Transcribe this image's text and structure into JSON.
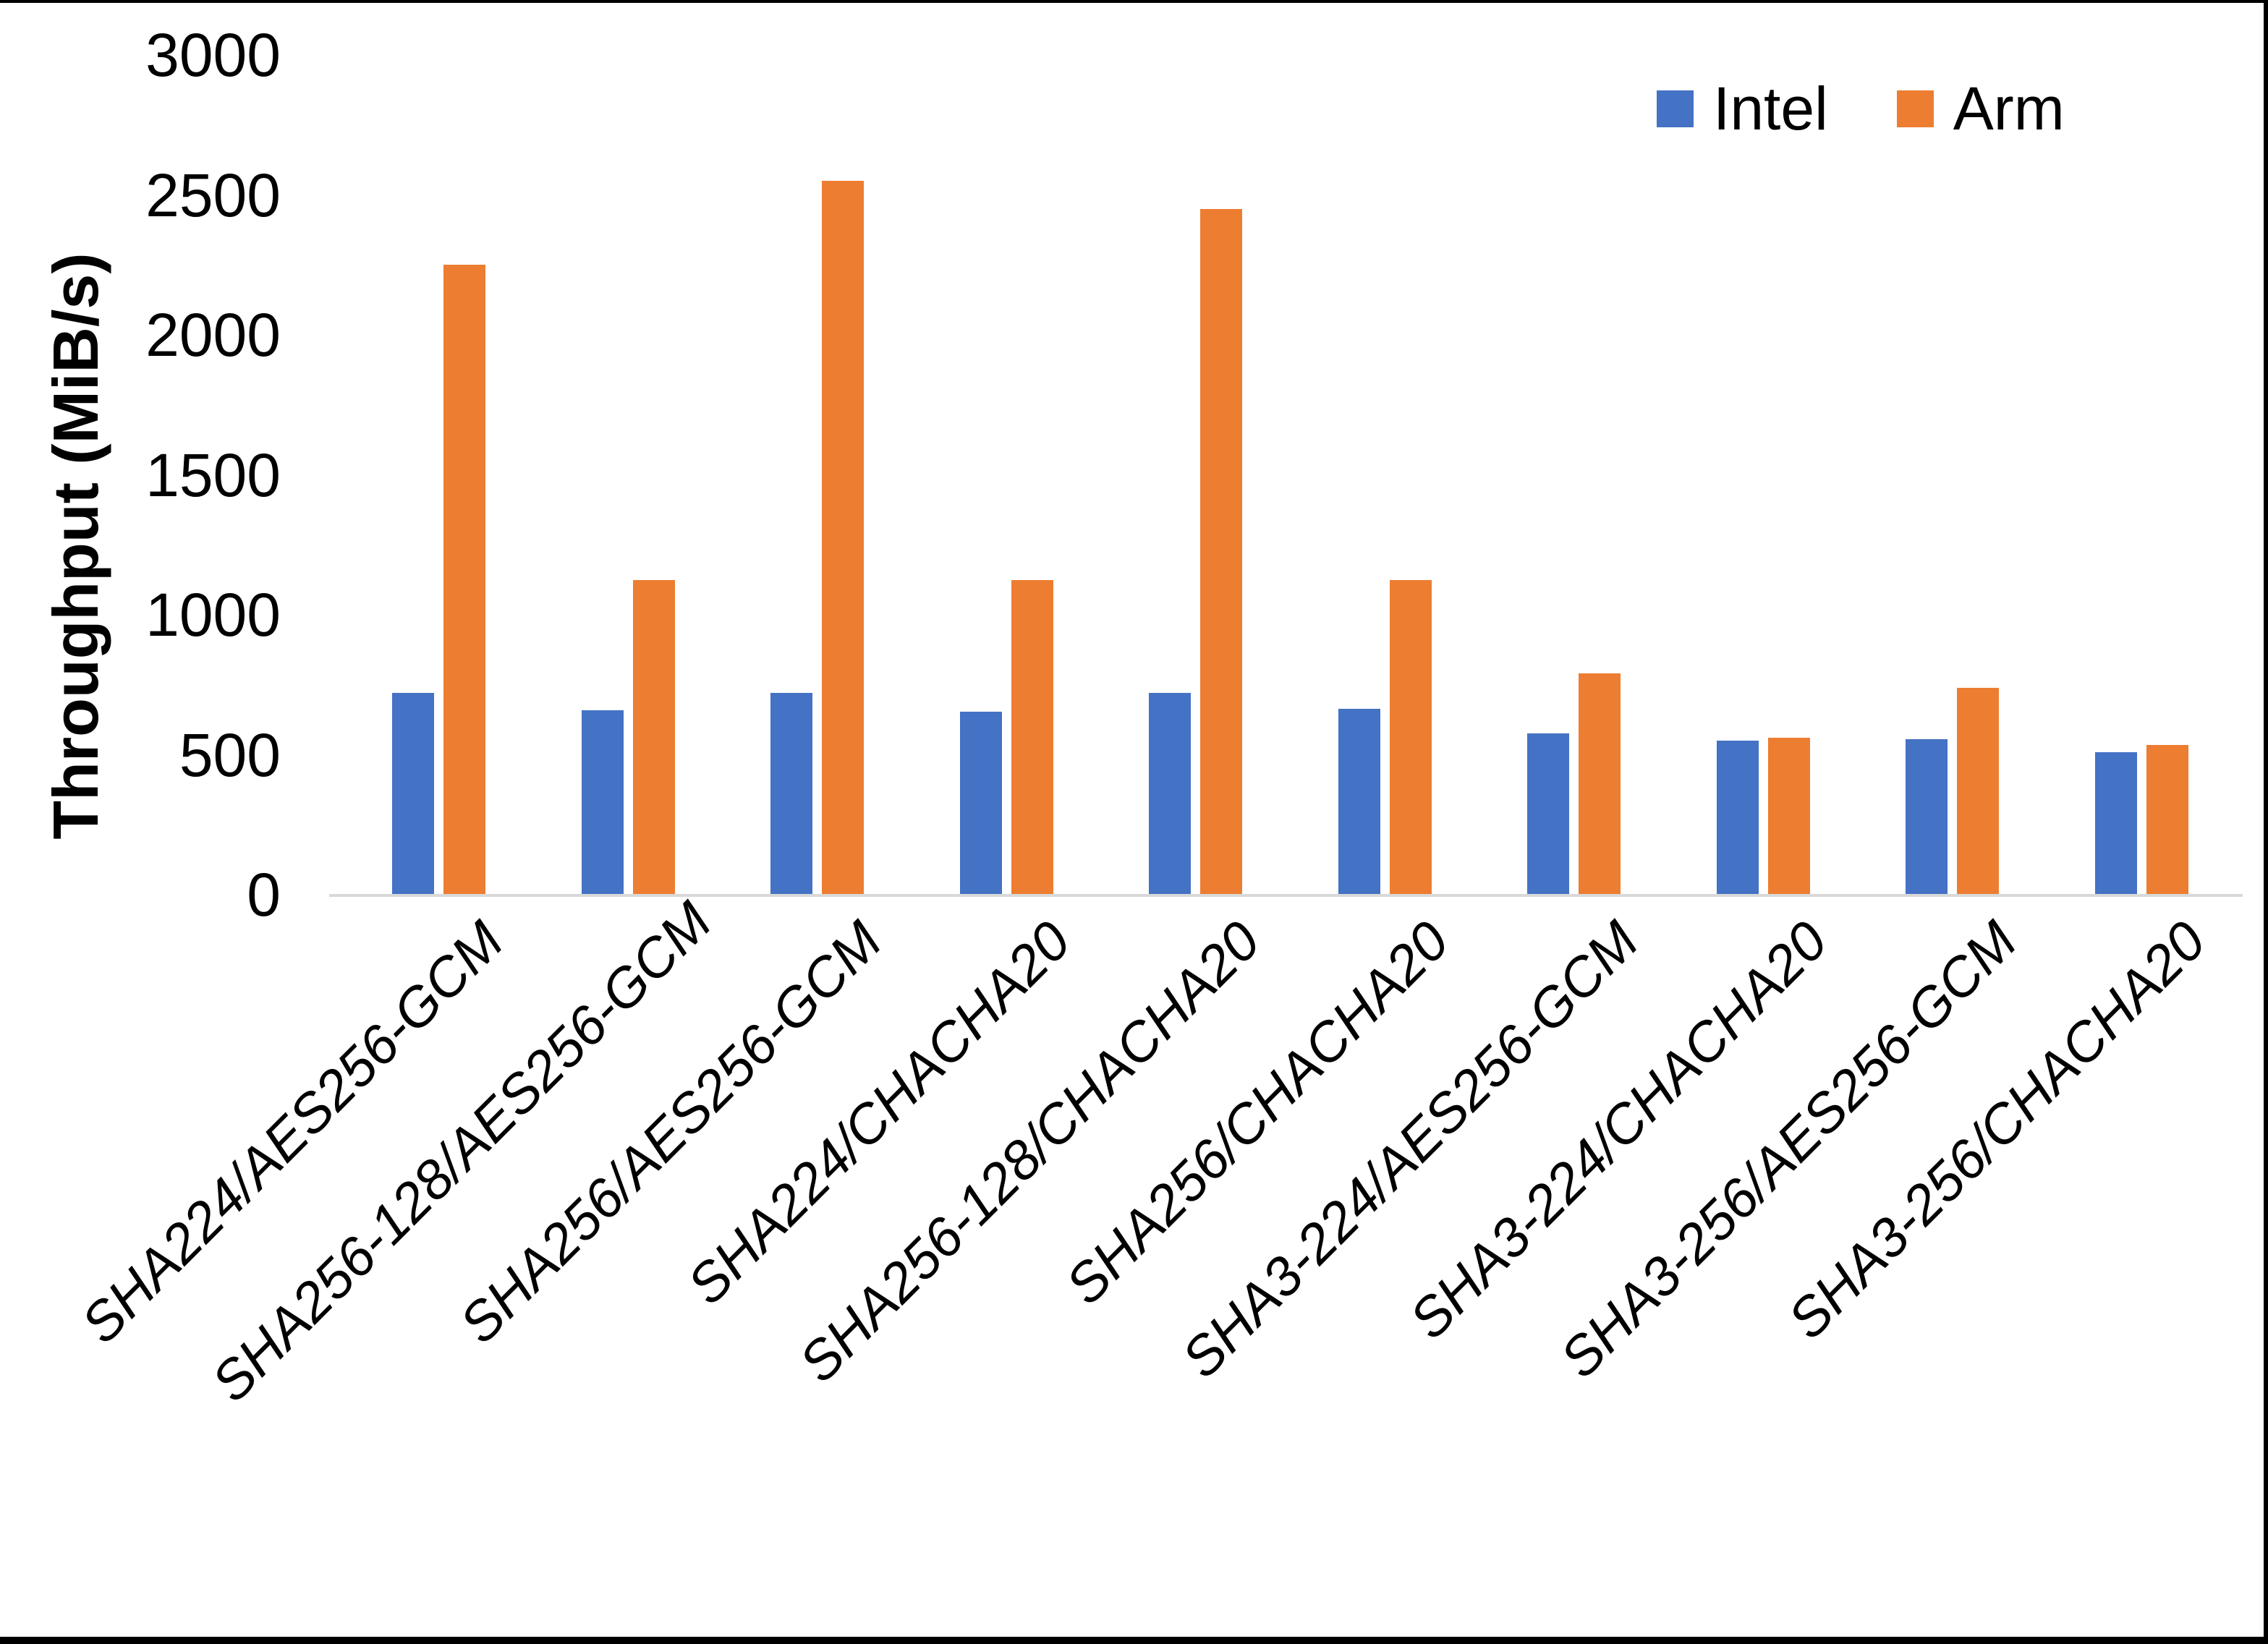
{
  "figure": {
    "background": "#FFFFFF",
    "border_color": "#000000"
  },
  "chart_data": {
    "type": "bar",
    "title": "",
    "xlabel": "",
    "ylabel": "Throughput (MiB/s)",
    "ylim": [
      0,
      3000
    ],
    "yticks": [
      0,
      500,
      1000,
      1500,
      2000,
      2500,
      3000
    ],
    "grid": false,
    "legend_position": "top-right",
    "axis_line_color": "#D9D9D9",
    "categories": [
      "SHA224/AES256-GCM",
      "SHA256-128/AES256-GCM",
      "SHA256/AES256-GCM",
      "SHA224/CHACHA20",
      "SHA256-128/CHACHA20",
      "SHA256/CHACHA20",
      "SHA3-224/AES256-GCM",
      "SHA3-224/CHACHA20",
      "SHA3-256/AES256-GCM",
      "SHA3-256/CHACHA20"
    ],
    "series": [
      {
        "name": "Intel",
        "color": "#4472C4",
        "values": [
          720,
          660,
          720,
          655,
          720,
          665,
          575,
          550,
          555,
          510
        ]
      },
      {
        "name": "Arm",
        "color": "#ED7D31",
        "values": [
          2250,
          1125,
          2550,
          1125,
          2450,
          1125,
          790,
          560,
          740,
          535
        ]
      }
    ]
  }
}
